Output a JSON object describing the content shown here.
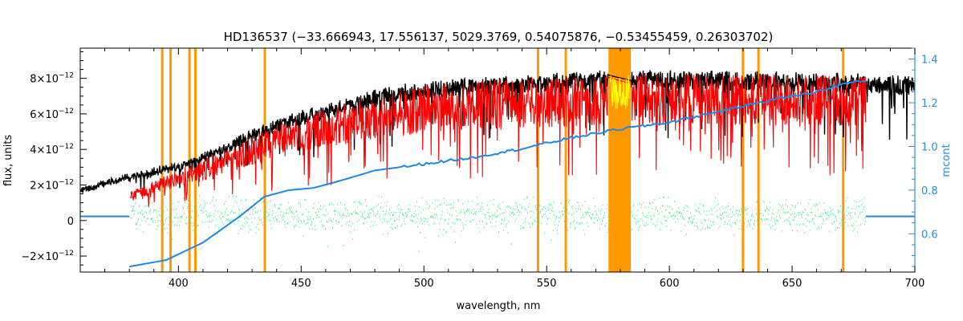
{
  "chart_data": {
    "type": "line",
    "title": "HD136537    (−33.666943, 17.556137, 5029.3769, 0.54075876, −0.53455459, 0.26303702)",
    "xlabel": "wavelength, nm",
    "ylabel": "flux, units",
    "y2label": "mcont",
    "xlim": [
      360,
      700
    ],
    "ylim": [
      -2.9e-12,
      9.7e-12
    ],
    "y2lim": [
      0.425,
      1.45
    ],
    "x_ticks": [
      400,
      450,
      500,
      550,
      600,
      650,
      700
    ],
    "x_tick_labels": [
      "400",
      "450",
      "500",
      "550",
      "600",
      "650",
      "700"
    ],
    "y_ticks": [
      -2e-12,
      0,
      2e-12,
      4e-12,
      6e-12,
      8e-12
    ],
    "y_tick_labels": [
      {
        "mant": "−2×10",
        "exp": "−12"
      },
      {
        "mant": "0",
        "exp": ""
      },
      {
        "mant": "2×10",
        "exp": "−12"
      },
      {
        "mant": "4×10",
        "exp": "−12"
      },
      {
        "mant": "6×10",
        "exp": "−12"
      },
      {
        "mant": "8×10",
        "exp": "−12"
      }
    ],
    "y2_ticks": [
      0.6,
      0.8,
      1.0,
      1.2,
      1.4
    ],
    "y2_tick_labels": [
      "0.6",
      "0.8",
      "1.0",
      "1.2",
      "1.4"
    ],
    "legend": "none",
    "grid": false,
    "colors": {
      "observed": "#000000",
      "model": "#ff0000",
      "masked_model": "#ffff00",
      "residual": "#22ee77",
      "continuum": "#1e88e5",
      "mask": "#ff9900",
      "right_axis": "#2a8fd8"
    },
    "series": [
      {
        "role": "observed",
        "axis": "left",
        "x_range": [
          360,
          700
        ],
        "envelope_x": [
          360,
          380,
          400,
          420,
          440,
          460,
          480,
          500,
          520,
          540,
          560,
          580,
          600,
          620,
          640,
          660,
          680,
          700
        ],
        "envelope_y": [
          1.8e-12,
          2.6e-12,
          3.2e-12,
          4.4e-12,
          5.7e-12,
          6.5e-12,
          7.3e-12,
          7.8e-12,
          8e-12,
          8.1e-12,
          8.3e-12,
          8.4e-12,
          8.4e-12,
          8.35e-12,
          8.3e-12,
          8.25e-12,
          8.2e-12,
          8e-12
        ]
      },
      {
        "role": "model",
        "axis": "left",
        "x_range": [
          380.5,
          680
        ],
        "envelope_x": [
          380,
          400,
          420,
          440,
          460,
          480,
          500,
          520,
          540,
          560,
          580,
          600,
          620,
          640,
          660,
          680
        ],
        "envelope_y": [
          1.6e-12,
          2.9e-12,
          4e-12,
          5.4e-12,
          6.3e-12,
          7e-12,
          7.6e-12,
          7.9e-12,
          8e-12,
          8.1e-12,
          8.2e-12,
          8.25e-12,
          8.25e-12,
          8.2e-12,
          8.2e-12,
          8.15e-12
        ]
      },
      {
        "role": "residual",
        "axis": "left",
        "x_range": [
          380.5,
          680
        ],
        "center": 3e-13,
        "scatter": 4.5e-13
      },
      {
        "role": "continuum",
        "axis": "right",
        "x": [
          380,
          395,
          410,
          425,
          435,
          445,
          455,
          465,
          480,
          500,
          520,
          540,
          560,
          580,
          600,
          620,
          640,
          660,
          672,
          680
        ],
        "y": [
          0.45,
          0.48,
          0.56,
          0.68,
          0.77,
          0.8,
          0.81,
          0.84,
          0.89,
          0.92,
          0.95,
          0.99,
          1.04,
          1.08,
          1.11,
          1.16,
          1.21,
          1.25,
          1.29,
          1.3
        ],
        "flat_y": 0.68
      }
    ],
    "masked_lines_nm": [
      393.4,
      396.8,
      404.5,
      406.9,
      435.2,
      546.5,
      557.8,
      630.0,
      636.3,
      670.8
    ],
    "masked_band_nm": [
      575.2,
      584.3
    ],
    "yellow_band_nm": [
      576.0,
      583.8
    ]
  }
}
